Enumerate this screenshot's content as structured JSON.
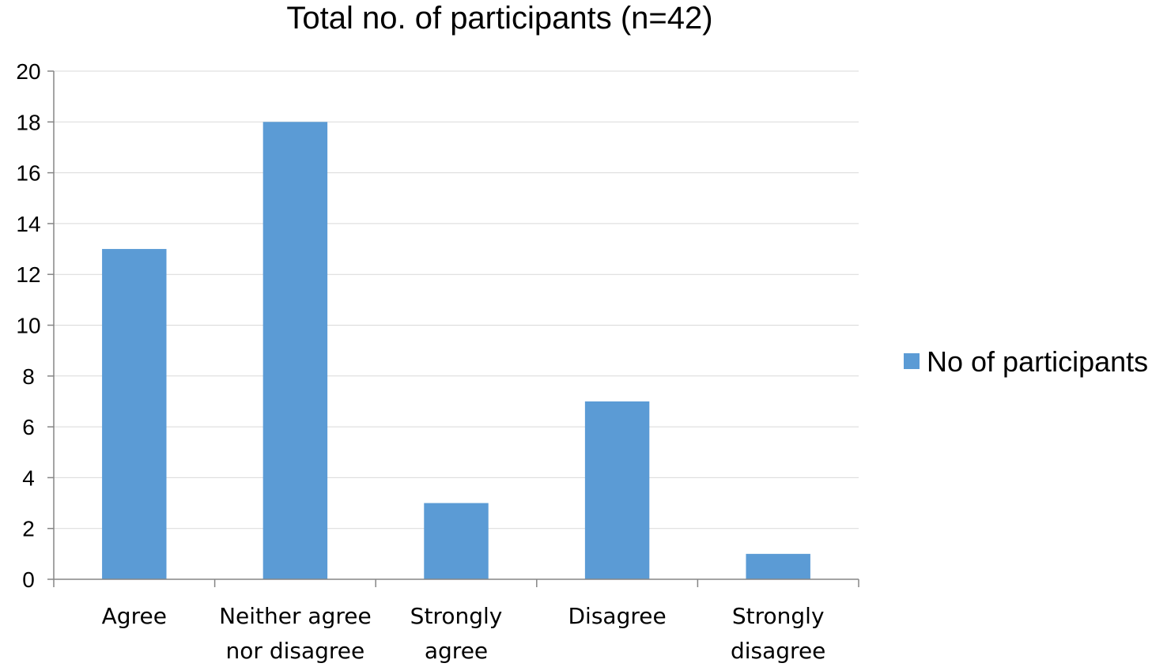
{
  "chart_data": {
    "type": "bar",
    "title": "Total no. of participants (n=42)",
    "categories": [
      "Agree",
      "Neither agree nor disagree",
      "Strongly agree",
      "Disagree",
      "Strongly disagree"
    ],
    "category_lines": [
      [
        "Agree"
      ],
      [
        "Neither agree",
        "nor disagree"
      ],
      [
        "Strongly",
        "agree"
      ],
      [
        "Disagree"
      ],
      [
        "Strongly",
        "disagree"
      ]
    ],
    "series": [
      {
        "name": "No of participants",
        "values": [
          13,
          18,
          3,
          7,
          1
        ],
        "color": "#5B9BD5"
      }
    ],
    "xlabel": "",
    "ylabel": "",
    "ylim": [
      0,
      20
    ],
    "yticks": [
      "0",
      "2",
      "4",
      "6",
      "8",
      "10",
      "12",
      "14",
      "16",
      "18",
      "20"
    ],
    "grid": true,
    "legend_position": "right",
    "gridline_color": "#D9D9D9",
    "axis_color": "#868686"
  }
}
